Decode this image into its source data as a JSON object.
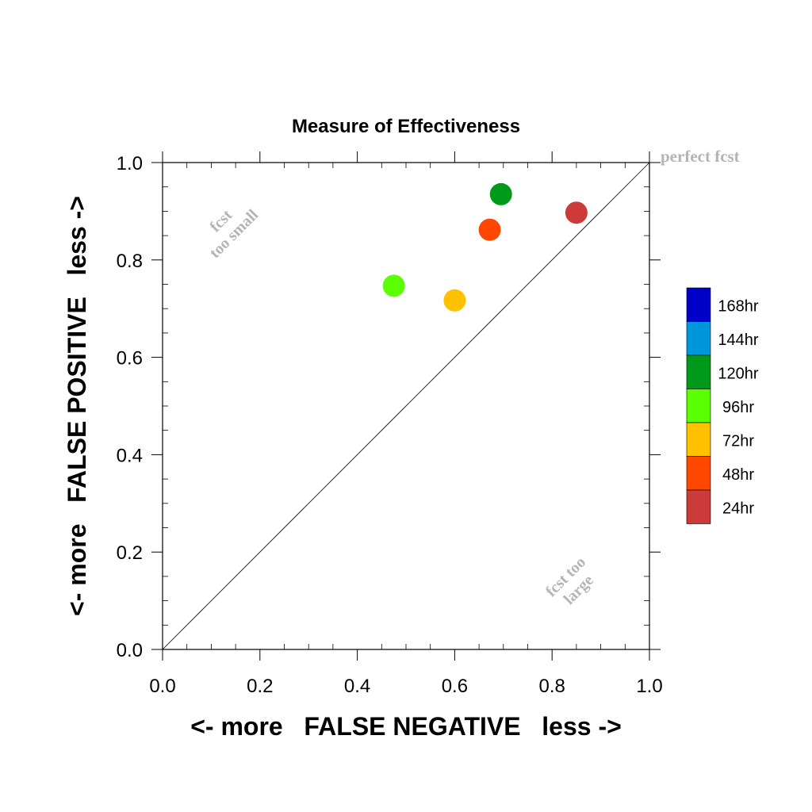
{
  "chart_data": {
    "type": "scatter",
    "title": "Measure of Effectiveness",
    "xlabel": "<- more   FALSE NEGATIVE   less ->",
    "ylabel": "<- more   FALSE POSITIVE   less ->",
    "xlim": [
      0.0,
      1.0
    ],
    "ylim": [
      0.0,
      1.0
    ],
    "xticks": [
      "0.0",
      "0.2",
      "0.4",
      "0.6",
      "0.8",
      "1.0"
    ],
    "yticks": [
      "0.0",
      "0.2",
      "0.4",
      "0.6",
      "0.8",
      "1.0"
    ],
    "grid": false,
    "reference_line": {
      "from": [
        0,
        0
      ],
      "to": [
        1,
        1
      ]
    },
    "annotations": {
      "perfect": "perfect fcst",
      "too_small_1": "fcst",
      "too_small_2": "too small",
      "too_large_1": "fcst too",
      "too_large_2": "large"
    },
    "points": [
      {
        "name": "24hr",
        "x": 0.85,
        "y": 0.897,
        "color": "#cc3a3a"
      },
      {
        "name": "48hr",
        "x": 0.672,
        "y": 0.862,
        "color": "#ff4700"
      },
      {
        "name": "72hr",
        "x": 0.6,
        "y": 0.717,
        "color": "#ffc100"
      },
      {
        "name": "96hr",
        "x": 0.475,
        "y": 0.747,
        "color": "#5aff00"
      },
      {
        "name": "120hr",
        "x": 0.695,
        "y": 0.935,
        "color": "#009a1a"
      }
    ],
    "legend": {
      "placement": "right",
      "entries": [
        {
          "label": "168hr",
          "color": "#0000c8"
        },
        {
          "label": "144hr",
          "color": "#0096dc"
        },
        {
          "label": "120hr",
          "color": "#009a1a"
        },
        {
          "label": "96hr",
          "color": "#5aff00"
        },
        {
          "label": "72hr",
          "color": "#ffc100"
        },
        {
          "label": "48hr",
          "color": "#ff4700"
        },
        {
          "label": "24hr",
          "color": "#cc3a3a"
        }
      ]
    }
  }
}
